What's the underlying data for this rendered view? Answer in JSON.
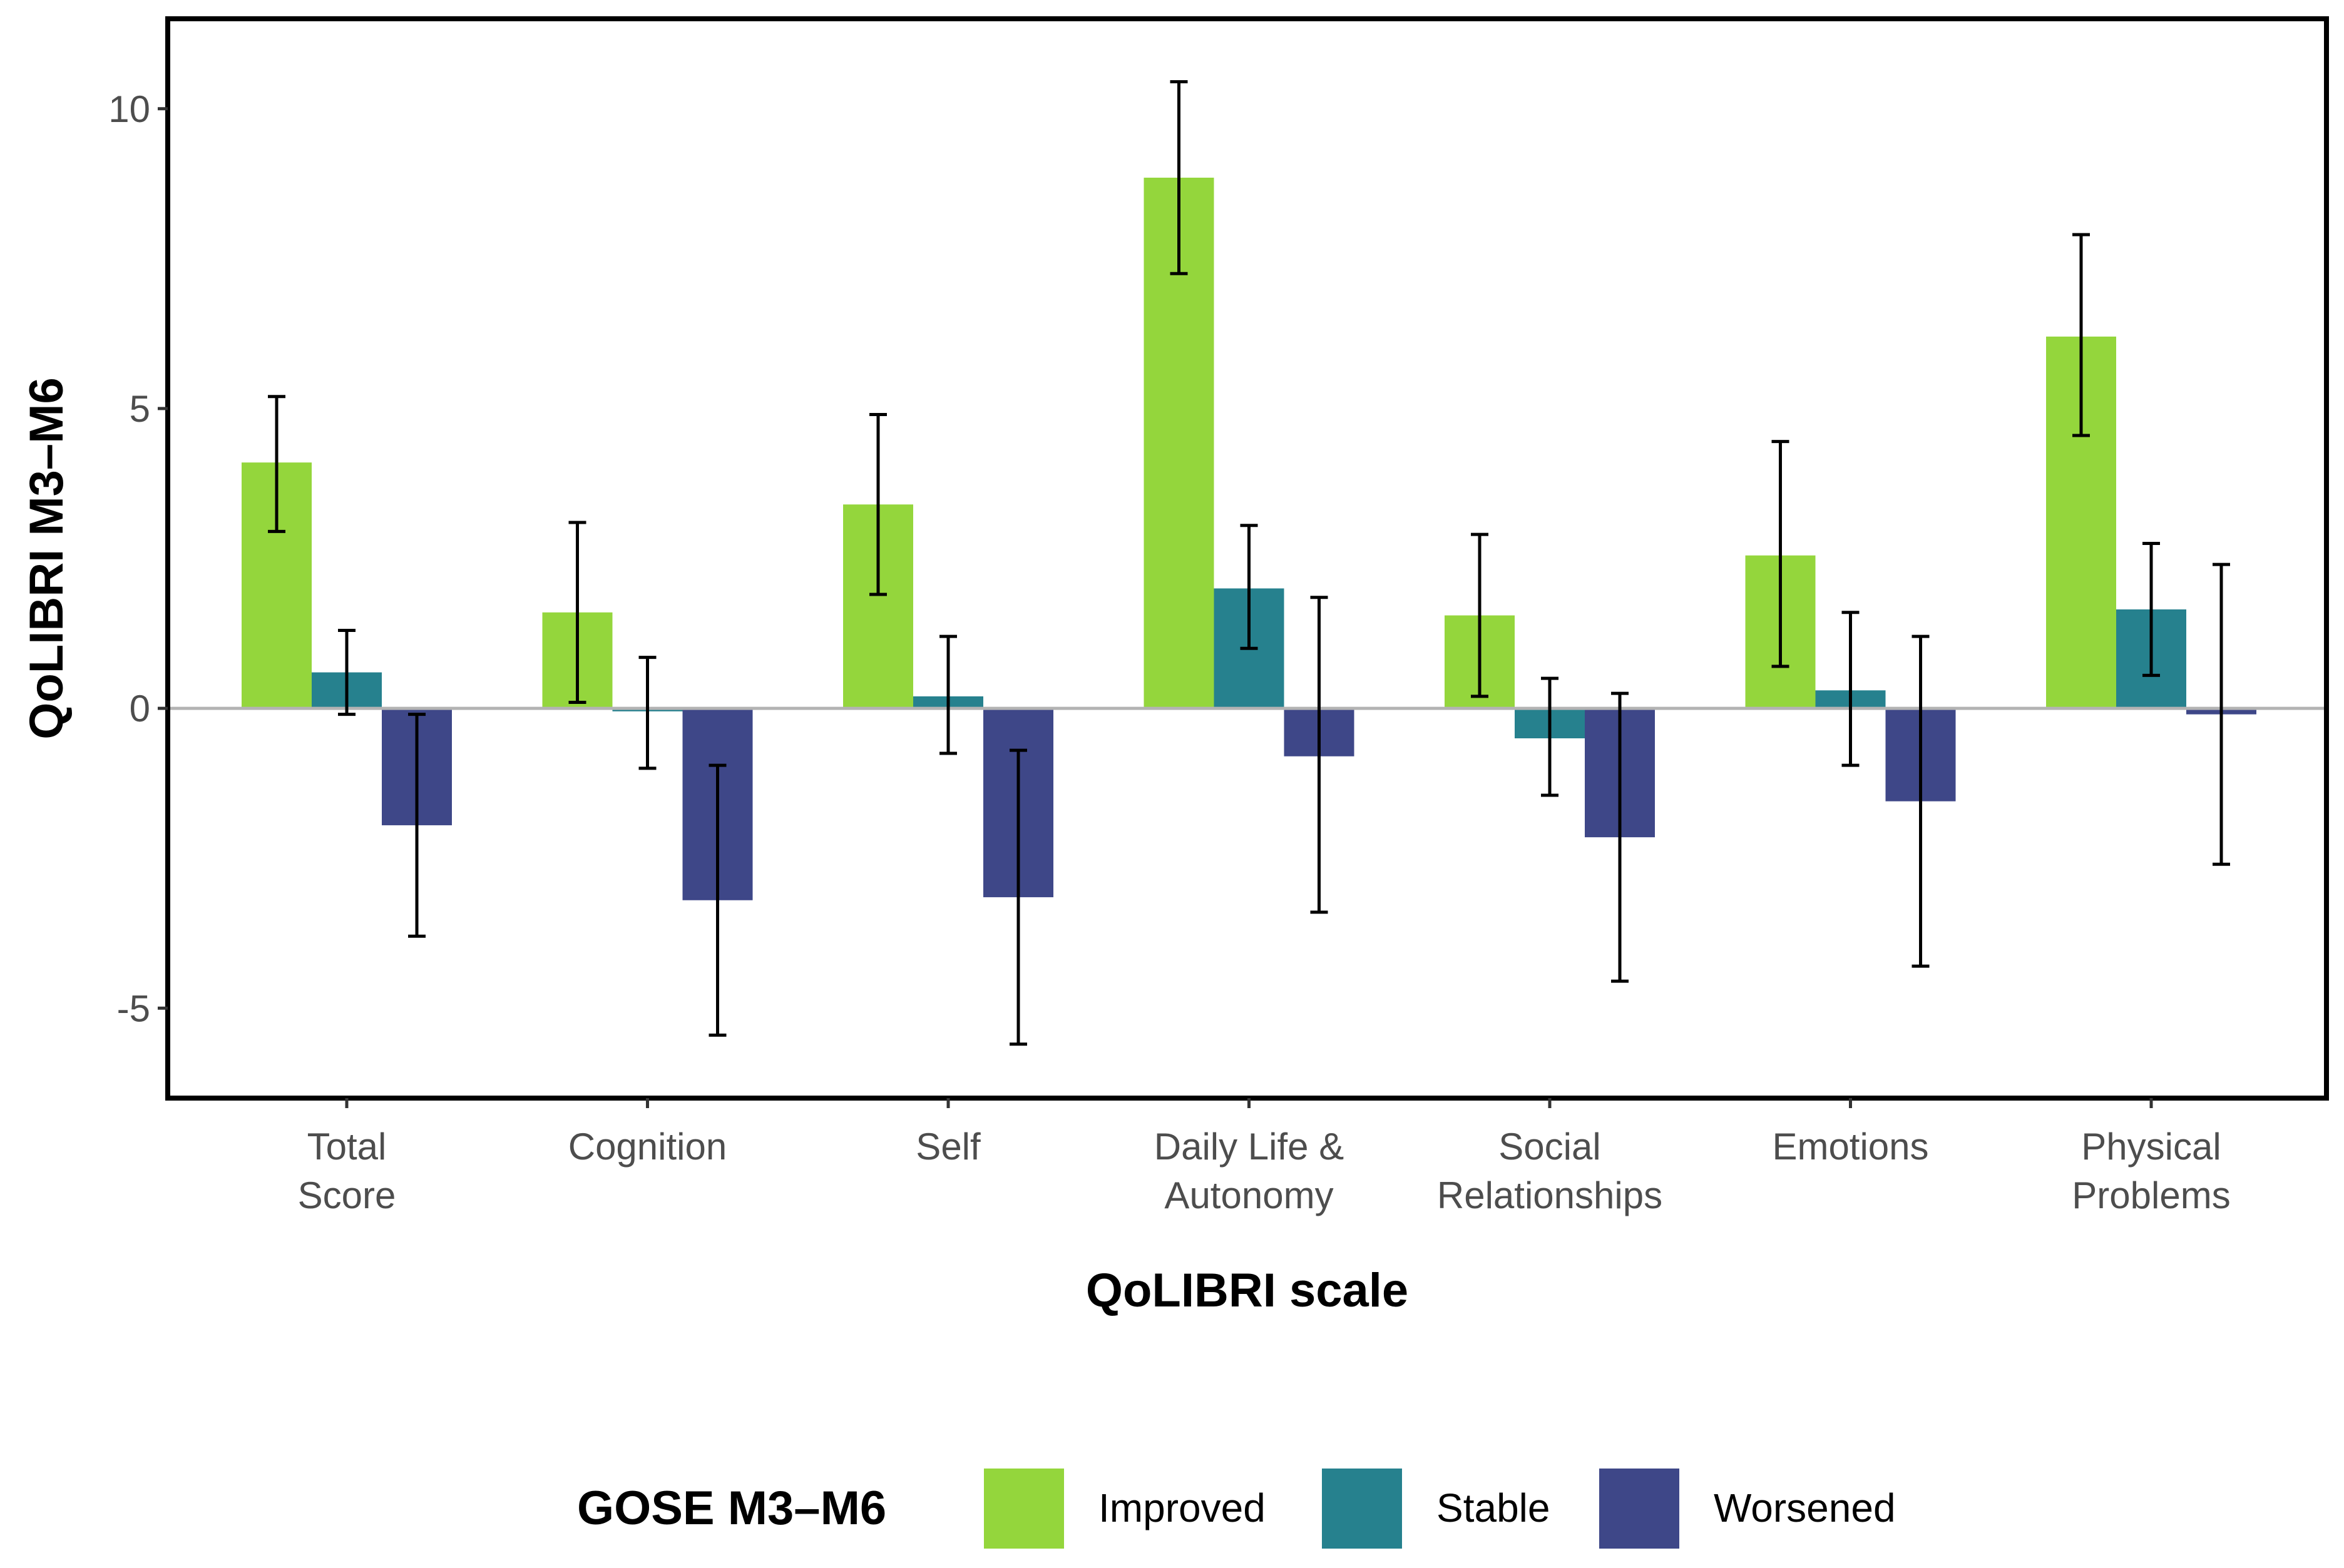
{
  "chart_data": {
    "type": "bar",
    "title": "",
    "xlabel": "QoLIBRI scale",
    "ylabel": "QoLIBRI M3–M6",
    "ylim": [
      -6.5,
      11.5
    ],
    "yticks": [
      -5,
      0,
      5,
      10
    ],
    "ytick_labels": [
      "-5",
      "0",
      "5",
      "10"
    ],
    "categories": [
      [
        "Total",
        "Score"
      ],
      [
        "Cognition"
      ],
      [
        "Self"
      ],
      [
        "Daily Life &",
        "Autonomy"
      ],
      [
        "Social",
        "Relationships"
      ],
      [
        "Emotions"
      ],
      [
        "Physical",
        "Problems"
      ]
    ],
    "series": [
      {
        "name": "Improved",
        "color": "#94d63c",
        "values": [
          4.1,
          1.6,
          3.4,
          8.85,
          1.55,
          2.55,
          6.2
        ],
        "err_low": [
          2.95,
          0.1,
          1.9,
          7.25,
          0.2,
          0.7,
          4.55
        ],
        "err_high": [
          5.2,
          3.1,
          4.9,
          10.45,
          2.9,
          4.45,
          7.9
        ]
      },
      {
        "name": "Stable",
        "color": "#26818e",
        "values": [
          0.6,
          -0.05,
          0.2,
          2.0,
          -0.5,
          0.3,
          1.65
        ],
        "err_low": [
          -0.1,
          -1.0,
          -0.75,
          1.0,
          -1.45,
          -0.95,
          0.55
        ],
        "err_high": [
          1.3,
          0.85,
          1.2,
          3.05,
          0.5,
          1.6,
          2.75
        ]
      },
      {
        "name": "Worsened",
        "color": "#3e4788",
        "values": [
          -1.95,
          -3.2,
          -3.15,
          -0.8,
          -2.15,
          -1.55,
          -0.1
        ],
        "err_low": [
          -3.8,
          -5.45,
          -5.6,
          -3.4,
          -4.55,
          -4.3,
          -2.6
        ],
        "err_high": [
          -0.1,
          -0.95,
          -0.7,
          1.85,
          0.25,
          1.2,
          2.4
        ]
      }
    ],
    "legend": {
      "title": "GOSE M3–M6",
      "position": "bottom"
    },
    "zero_line": true,
    "grid": false
  }
}
